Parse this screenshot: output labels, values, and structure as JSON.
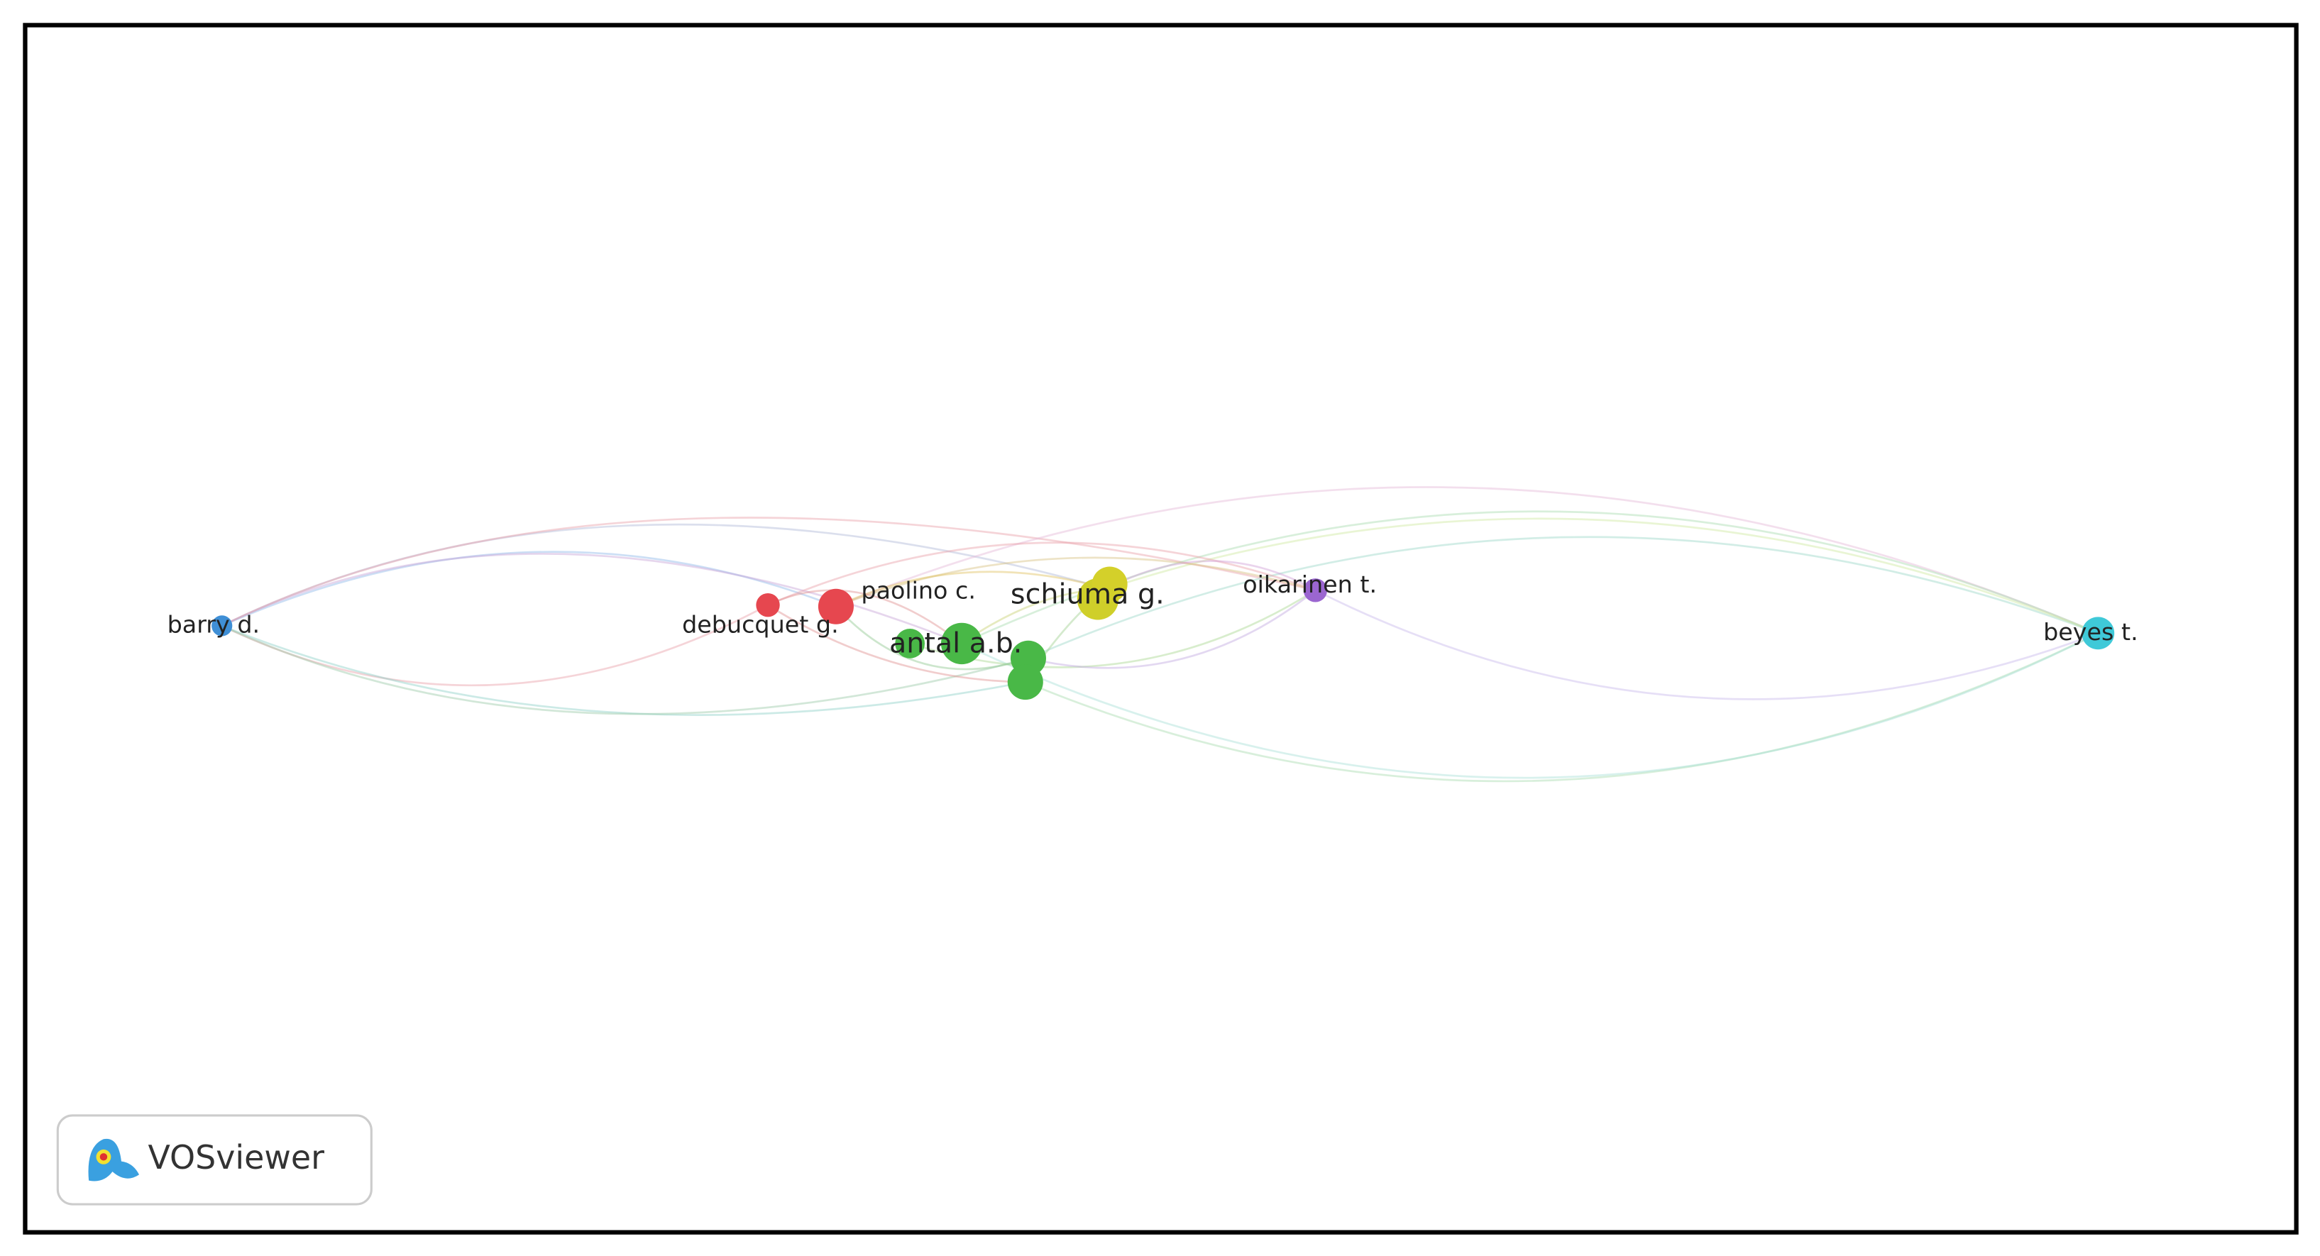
{
  "nodes": [
    {
      "label": "barry d."
    },
    {
      "label": "debucquet g."
    },
    {
      "label": "paolino c."
    },
    {
      "label": "schiuma g."
    },
    {
      "label": "antal a.b."
    },
    {
      "label": "oikarinen t."
    },
    {
      "label": "beyes t."
    }
  ],
  "logo": {
    "text": "VOSviewer"
  }
}
